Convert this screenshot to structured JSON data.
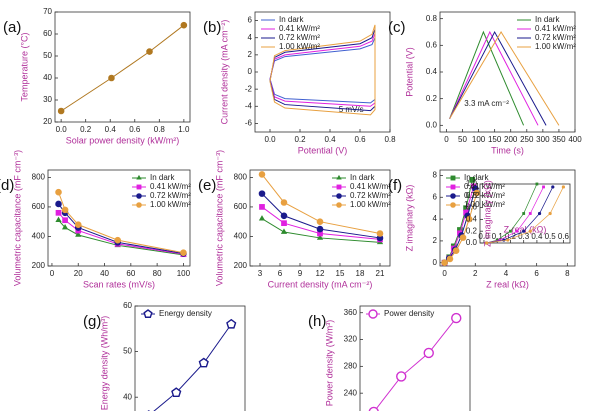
{
  "chart_data": [
    {
      "type": "line",
      "label": "(a)",
      "xlabel": "Solar power density (kW/m²)",
      "ylabel": "Temperature (°C)",
      "x": [
        0,
        0.41,
        0.72,
        1.0
      ],
      "xlim": [
        -0.05,
        1.05
      ],
      "xticks": [
        {
          "value": 0,
          "label": "0.0"
        },
        0.2,
        0.4,
        0.6,
        0.8,
        {
          "value": 1,
          "label": "1.0"
        }
      ],
      "ylim": [
        20,
        70
      ],
      "yticks": [
        20,
        30,
        40,
        50,
        60,
        70
      ],
      "series": [
        {
          "color": "#b07820",
          "marker": "circle",
          "values": [
            25,
            40,
            52,
            64
          ]
        }
      ]
    },
    {
      "type": "line",
      "label": "(b)",
      "xlabel": "Potential (V)",
      "ylabel": "Current density (mA cm⁻²)",
      "annotation": "5 mV/s",
      "legend": "upper left",
      "xlim": [
        -0.1,
        0.8
      ],
      "xticks": [
        {
          "value": 0,
          "label": "0.0"
        },
        0.2,
        0.4,
        0.6,
        0.8
      ],
      "ylim": [
        -7,
        7
      ],
      "yticks": [
        -6,
        -4,
        -2,
        0,
        2,
        4,
        6
      ],
      "series": [
        {
          "name": "In dark",
          "color": "#4060d0",
          "x": [
            0,
            0.03,
            0.1,
            0.6,
            0.68,
            0.7,
            0.7,
            0.67,
            0.1,
            0.03,
            0
          ],
          "values": [
            -0.8,
            1.3,
            1.8,
            2.7,
            3.2,
            4.0,
            -3.2,
            -3.6,
            -3.1,
            -2.6,
            -0.8
          ]
        },
        {
          "name": "0.41 kW/m²",
          "color": "#e020e0",
          "x": [
            0,
            0.03,
            0.1,
            0.6,
            0.68,
            0.7,
            0.7,
            0.67,
            0.1,
            0.03,
            0
          ],
          "values": [
            -0.9,
            1.5,
            2.0,
            3.0,
            3.6,
            4.5,
            -3.6,
            -4.0,
            -3.4,
            -2.9,
            -0.9
          ]
        },
        {
          "name": "0.72 kW/m²",
          "color": "#1a1a8c",
          "x": [
            0,
            0.03,
            0.1,
            0.6,
            0.68,
            0.7,
            0.7,
            0.67,
            0.1,
            0.03,
            0
          ],
          "values": [
            -1.0,
            1.7,
            2.3,
            3.3,
            4.0,
            5.0,
            -4.0,
            -4.5,
            -3.8,
            -3.2,
            -1.0
          ]
        },
        {
          "name": "1.00 kW/m²",
          "color": "#e8a040",
          "x": [
            0,
            0.03,
            0.1,
            0.6,
            0.68,
            0.7,
            0.7,
            0.67,
            0.1,
            0.03,
            0
          ],
          "values": [
            -1.1,
            1.9,
            2.5,
            3.6,
            4.4,
            5.5,
            -4.4,
            -5.0,
            -4.2,
            -3.5,
            -1.1
          ]
        }
      ]
    },
    {
      "type": "line",
      "label": "(c)",
      "xlabel": "Time (s)",
      "ylabel": "Potential (V)",
      "annotation": "3.3 mA cm⁻²",
      "legend": "upper right",
      "xlim": [
        -20,
        400
      ],
      "xticks": [
        0,
        50,
        100,
        150,
        200,
        250,
        300,
        350,
        400
      ],
      "ylim": [
        -0.05,
        0.85
      ],
      "yticks": [
        {
          "value": 0,
          "label": "0.0"
        },
        0.2,
        0.4,
        0.6,
        0.8
      ],
      "series": [
        {
          "name": "In dark",
          "color": "#2e8b2e",
          "x": [
            10,
            115,
            240
          ],
          "values": [
            0.05,
            0.7,
            0
          ]
        },
        {
          "name": "0.41 kW/m²",
          "color": "#e020e0",
          "x": [
            10,
            135,
            285
          ],
          "values": [
            0.05,
            0.7,
            0
          ]
        },
        {
          "name": "0.72 kW/m²",
          "color": "#1a1a8c",
          "x": [
            10,
            150,
            310
          ],
          "values": [
            0.05,
            0.7,
            0
          ]
        },
        {
          "name": "1.00 kW/m²",
          "color": "#e8a040",
          "x": [
            10,
            170,
            350
          ],
          "values": [
            0.05,
            0.7,
            0
          ]
        }
      ]
    },
    {
      "type": "line",
      "label": "(d)",
      "xlabel": "Scan rates (mV/s)",
      "ylabel": "Volumetric capacitance (mF cm⁻³)",
      "legend": "upper right",
      "x": [
        5,
        10,
        20,
        50,
        100
      ],
      "xlim": [
        -3,
        105
      ],
      "xticks": [
        0,
        20,
        40,
        60,
        80,
        100
      ],
      "ylim": [
        200,
        850
      ],
      "yticks": [
        200,
        400,
        600,
        800
      ],
      "series": [
        {
          "name": "In dark",
          "color": "#2e8b2e",
          "marker": "triangle",
          "values": [
            510,
            460,
            410,
            340,
            275
          ]
        },
        {
          "name": "0.41 kW/m²",
          "color": "#e020e0",
          "marker": "square",
          "values": [
            560,
            510,
            440,
            350,
            280
          ]
        },
        {
          "name": "0.72 kW/m²",
          "color": "#1a1a8c",
          "marker": "circle",
          "values": [
            620,
            560,
            460,
            360,
            285
          ]
        },
        {
          "name": "1.00 kW/m²",
          "color": "#e8a040",
          "marker": "circle",
          "values": [
            700,
            580,
            480,
            375,
            290
          ]
        }
      ]
    },
    {
      "type": "line",
      "label": "(e)",
      "xlabel": "Current density (mA cm⁻²)",
      "ylabel": "Volumetric capacitance (mF cm⁻³)",
      "legend": "upper right",
      "x": [
        3.3,
        6.6,
        12,
        21
      ],
      "xlim": [
        1.5,
        22.5
      ],
      "xticks": [
        3,
        6,
        9,
        12,
        15,
        18,
        21
      ],
      "ylim": [
        200,
        850
      ],
      "yticks": [
        200,
        400,
        600,
        800
      ],
      "series": [
        {
          "name": "In dark",
          "color": "#2e8b2e",
          "marker": "triangle",
          "values": [
            520,
            430,
            390,
            360
          ]
        },
        {
          "name": "0.41 kW/m²",
          "color": "#e020e0",
          "marker": "square",
          "values": [
            600,
            490,
            420,
            380
          ]
        },
        {
          "name": "0.72 kW/m²",
          "color": "#1a1a8c",
          "marker": "circle",
          "values": [
            690,
            540,
            450,
            390
          ]
        },
        {
          "name": "1.00 kW/m²",
          "color": "#e8a040",
          "marker": "circle",
          "values": [
            820,
            630,
            500,
            420
          ]
        }
      ]
    },
    {
      "type": "line",
      "label": "(f)",
      "xlabel": "Z real (kΩ)",
      "ylabel": "Z imaginary (kΩ)",
      "legend": "upper left",
      "xlim": [
        -0.3,
        8.5
      ],
      "xticks": [
        0,
        2,
        4,
        6,
        8
      ],
      "ylim": [
        -0.3,
        8.5
      ],
      "yticks": [
        0,
        2,
        4,
        6,
        8
      ],
      "series": [
        {
          "name": "In dark",
          "color": "#2e8b2e",
          "marker": "square",
          "x": [
            0,
            0.3,
            0.6,
            1.0,
            1.4,
            1.8
          ],
          "values": [
            0,
            0.5,
            1.5,
            3,
            5,
            7.6
          ]
        },
        {
          "name": "0.41 kW/m²",
          "color": "#e020e0",
          "marker": "square",
          "x": [
            0,
            0.3,
            0.6,
            1.0,
            1.4,
            1.9
          ],
          "values": [
            0,
            0.4,
            1.3,
            2.7,
            4.6,
            7
          ]
        },
        {
          "name": "0.72 kW/m²",
          "color": "#1a1a8c",
          "marker": "circle",
          "x": [
            0,
            0.3,
            0.7,
            1.1,
            1.5,
            2.0
          ],
          "values": [
            0,
            0.4,
            1.2,
            2.5,
            4.3,
            6.8
          ]
        },
        {
          "name": "1.00 kW/m²",
          "color": "#e8a040",
          "marker": "circle",
          "x": [
            0,
            0.35,
            0.75,
            1.2,
            1.6,
            2.1
          ],
          "values": [
            0,
            0.35,
            1.1,
            2.3,
            4,
            6.4
          ]
        }
      ]
    },
    {
      "type": "line",
      "xlabel": "Z real (kΩ)",
      "ylabel": "Z imaginary (kΩ)",
      "xlim": [
        -0.03,
        0.65
      ],
      "xticks": [
        {
          "value": 0,
          "label": "0.0"
        },
        0.1,
        0.2,
        0.3,
        0.4,
        0.5,
        0.6
      ],
      "ylim": [
        0,
        1.0
      ],
      "yticks": [
        {
          "value": 0,
          "label": "0.0"
        },
        0.2,
        0.4,
        0.6,
        0.8,
        {
          "value": 1,
          "label": "1.0"
        }
      ],
      "series": [
        {
          "color": "#2e8b2e",
          "marker": "square",
          "x": [
            0.02,
            0.1,
            0.2,
            0.3,
            0.4
          ],
          "values": [
            0,
            0.05,
            0.2,
            0.5,
            1.0
          ]
        },
        {
          "color": "#e020e0",
          "marker": "square",
          "x": [
            0.02,
            0.12,
            0.25,
            0.35,
            0.45
          ],
          "values": [
            0,
            0.05,
            0.2,
            0.5,
            0.95
          ]
        },
        {
          "color": "#1a1a8c",
          "marker": "circle",
          "x": [
            0.02,
            0.15,
            0.3,
            0.42,
            0.52
          ],
          "values": [
            0,
            0.05,
            0.2,
            0.5,
            0.95
          ]
        },
        {
          "color": "#e8a040",
          "marker": "circle",
          "x": [
            0.02,
            0.18,
            0.35,
            0.5,
            0.6
          ],
          "values": [
            0,
            0.05,
            0.2,
            0.5,
            0.95
          ]
        }
      ]
    },
    {
      "type": "line",
      "label": "(g)",
      "ylabel": "Energy density (Wh/m³)",
      "legend": "upper left",
      "categories": [
        null,
        null,
        null,
        null
      ],
      "ylim": [
        35,
        60
      ],
      "yticks": [
        40,
        50,
        60
      ],
      "series": [
        {
          "name": "Energy density",
          "color": "#1a1a8c",
          "marker": "pentagon",
          "open": true,
          "values": [
            36,
            41,
            47.5,
            56
          ]
        }
      ]
    },
    {
      "type": "line",
      "label": "(h)",
      "ylabel": "Power density (W/m³)",
      "legend": "upper left",
      "categories": [
        null,
        null,
        null,
        null
      ],
      "ylim": [
        200,
        370
      ],
      "yticks": [
        240,
        280,
        320,
        360
      ],
      "series": [
        {
          "name": "Power density",
          "color": "#d030d0",
          "marker": "circle",
          "open": true,
          "values": [
            212,
            265,
            300,
            352
          ]
        }
      ]
    }
  ]
}
